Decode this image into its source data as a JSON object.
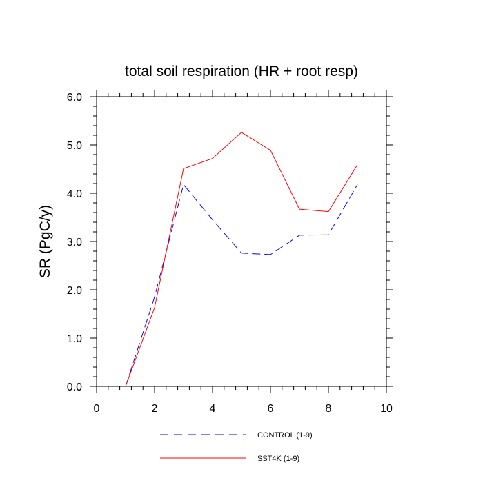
{
  "chart_data": {
    "type": "line",
    "title": "total soil respiration (HR + root resp)",
    "xlabel": "",
    "ylabel": "SR  (PgC/y)",
    "xlim": [
      0,
      10
    ],
    "ylim": [
      0.0,
      6.0
    ],
    "xticks": [
      0,
      2,
      4,
      6,
      8,
      10
    ],
    "xtick_labels": [
      "0",
      "2",
      "4",
      "6",
      "8",
      "10"
    ],
    "yticks": [
      0.0,
      1.0,
      2.0,
      3.0,
      4.0,
      5.0,
      6.0
    ],
    "ytick_labels": [
      "0.0",
      "1.0",
      "2.0",
      "3.0",
      "4.0",
      "5.0",
      "6.0"
    ],
    "x": [
      1,
      2,
      3,
      4,
      5,
      6,
      7,
      8,
      9
    ],
    "series": [
      {
        "name": "CONTROL (1-9)",
        "color": "#0000ff",
        "style": "dashed",
        "values": [
          0.0,
          1.85,
          4.18,
          3.45,
          2.76,
          2.73,
          3.13,
          3.14,
          4.18
        ]
      },
      {
        "name": "SST4K (1-9)",
        "color": "#ff0000",
        "style": "solid",
        "values": [
          0.0,
          1.63,
          4.51,
          4.72,
          5.26,
          4.89,
          3.67,
          3.62,
          4.59
        ]
      }
    ],
    "legend_position": "bottom",
    "grid": false
  }
}
